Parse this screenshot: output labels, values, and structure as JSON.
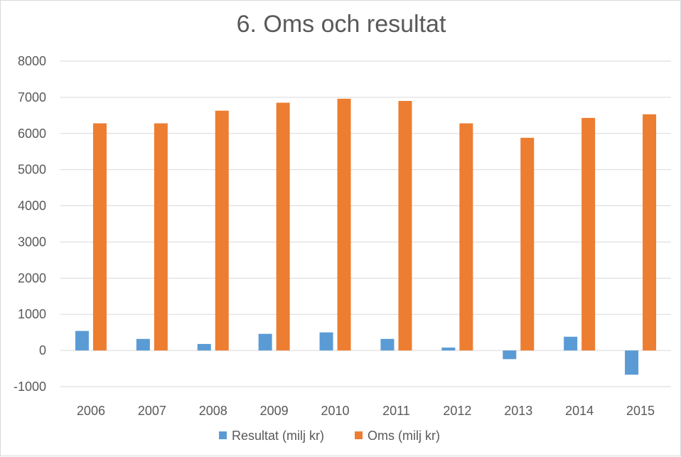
{
  "chart_data": {
    "type": "bar",
    "title": "6. Oms och resultat",
    "categories": [
      "2006",
      "2007",
      "2008",
      "2009",
      "2010",
      "2011",
      "2012",
      "2013",
      "2014",
      "2015"
    ],
    "series": [
      {
        "name": "Resultat (milj kr)",
        "color": "#5b9bd5",
        "values": [
          540,
          320,
          180,
          460,
          500,
          320,
          80,
          -240,
          380,
          -670
        ]
      },
      {
        "name": "Oms (milj kr)",
        "color": "#ed7d31",
        "values": [
          6280,
          6280,
          6630,
          6850,
          6960,
          6900,
          6280,
          5880,
          6430,
          6530
        ]
      }
    ],
    "ylim": [
      -1000,
      8000
    ],
    "yticks": [
      8000,
      7000,
      6000,
      5000,
      4000,
      3000,
      2000,
      1000,
      0,
      -1000
    ],
    "grid": true,
    "legend": "bottom"
  }
}
